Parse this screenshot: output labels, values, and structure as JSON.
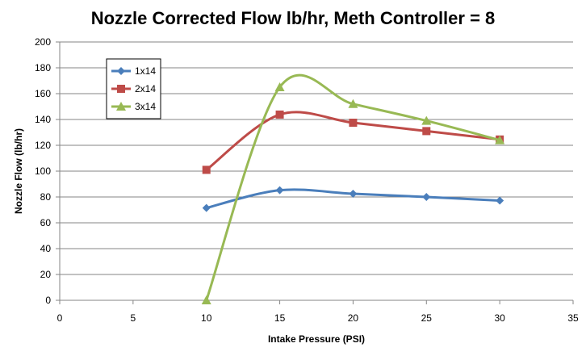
{
  "chart_data": {
    "type": "line",
    "title": "Nozzle Corrected Flow lb/hr, Meth Controller = 8",
    "xlabel": "Intake Pressure (PSI)",
    "ylabel": "Nozzle Flow (lb/hr)",
    "xlim": [
      0,
      35
    ],
    "ylim": [
      0,
      200
    ],
    "xticks": [
      0,
      5,
      10,
      15,
      20,
      25,
      30,
      35
    ],
    "yticks": [
      0,
      20,
      40,
      60,
      80,
      100,
      120,
      140,
      160,
      180,
      200
    ],
    "grid": "horizontal",
    "legend_position": "top-left",
    "smoothed": true,
    "series": [
      {
        "name": "1x14",
        "color": "#4a7ebb",
        "marker": "diamond",
        "x": [
          10,
          15,
          20,
          25,
          30
        ],
        "y": [
          71.5,
          85.2,
          82.5,
          80.0,
          77.2
        ]
      },
      {
        "name": "2x14",
        "color": "#be4b48",
        "marker": "square",
        "x": [
          10,
          15,
          20,
          25,
          30
        ],
        "y": [
          101.0,
          143.8,
          137.5,
          131.0,
          124.5
        ]
      },
      {
        "name": "3x14",
        "color": "#98b954",
        "marker": "triangle",
        "x": [
          10,
          15,
          20,
          25,
          30
        ],
        "y": [
          0,
          165.0,
          152.0,
          139.0,
          124.0
        ]
      }
    ]
  }
}
